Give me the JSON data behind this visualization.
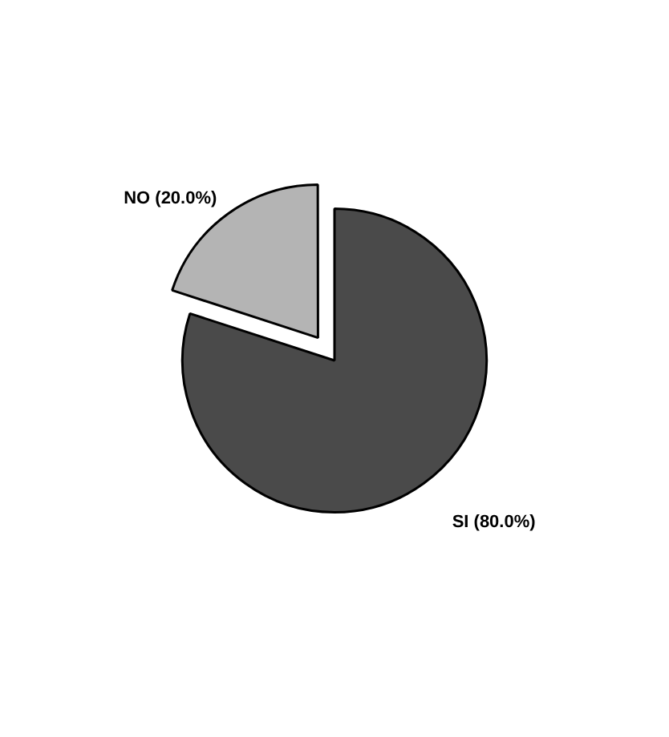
{
  "chart_data": {
    "type": "pie",
    "categories": [
      "SI (80.0%)",
      "NO (20.0%)"
    ],
    "values": [
      80,
      20
    ],
    "colors": [
      "#4a4a4a",
      "#b4b4b4"
    ],
    "legend": false
  }
}
